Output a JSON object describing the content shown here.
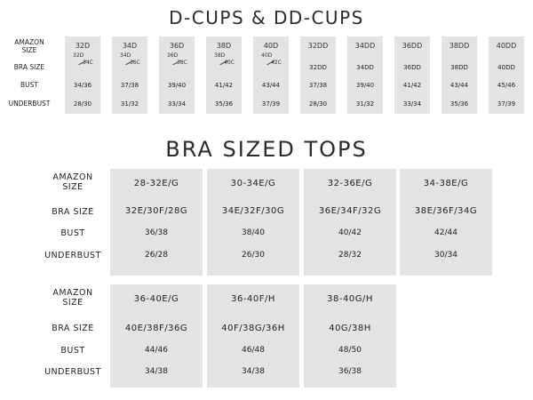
{
  "section1": {
    "title": "D-CUPS & DD-CUPS",
    "row_labels": [
      "AMAZON SIZE",
      "BRA SIZE",
      "BUST",
      "UNDERBUST"
    ],
    "columns": [
      {
        "amazon": "32D",
        "bra_a": "32D",
        "bra_b": "34C",
        "bust": "34/36",
        "underbust": "28/30"
      },
      {
        "amazon": "34D",
        "bra_a": "34D",
        "bra_b": "36C",
        "bust": "37/38",
        "underbust": "31/32"
      },
      {
        "amazon": "36D",
        "bra_a": "36D",
        "bra_b": "38C",
        "bust": "39/40",
        "underbust": "33/34"
      },
      {
        "amazon": "38D",
        "bra_a": "38D",
        "bra_b": "40C",
        "bust": "41/42",
        "underbust": "35/36"
      },
      {
        "amazon": "40D",
        "bra_a": "40D",
        "bra_b": "42C",
        "bust": "43/44",
        "underbust": "37/39"
      },
      {
        "amazon": "32DD",
        "bra": "32DD",
        "bust": "37/38",
        "underbust": "28/30"
      },
      {
        "amazon": "34DD",
        "bra": "34DD",
        "bust": "39/40",
        "underbust": "31/32"
      },
      {
        "amazon": "36DD",
        "bra": "36DD",
        "bust": "41/42",
        "underbust": "33/34"
      },
      {
        "amazon": "38DD",
        "bra": "38DD",
        "bust": "43/44",
        "underbust": "35/36"
      },
      {
        "amazon": "40DD",
        "bra": "40DD",
        "bust": "45/46",
        "underbust": "37/39"
      }
    ]
  },
  "section2": {
    "title": "BRA SIZED TOPS",
    "row_labels": [
      "AMAZON SIZE",
      "BRA SIZE",
      "BUST",
      "UNDERBUST"
    ],
    "columns": [
      {
        "amazon": "28-32E/G",
        "bra": "32E/30F/28G",
        "bust": "36/38",
        "underbust": "26/28"
      },
      {
        "amazon": "30-34E/G",
        "bra": "34E/32F/30G",
        "bust": "38/40",
        "underbust": "26/30"
      },
      {
        "amazon": "32-36E/G",
        "bra": "36E/34F/32G",
        "bust": "40/42",
        "underbust": "28/32"
      },
      {
        "amazon": "34-38E/G",
        "bra": "38E/36F/34G",
        "bust": "42/44",
        "underbust": "30/34"
      }
    ]
  },
  "section3": {
    "row_labels": [
      "AMAZON SIZE",
      "BRA SIZE",
      "BUST",
      "UNDERBUST"
    ],
    "columns": [
      {
        "amazon": "36-40E/G",
        "bra": "40E/38F/36G",
        "bust": "44/46",
        "underbust": "34/38"
      },
      {
        "amazon": "36-40F/H",
        "bra": "40F/38G/36H",
        "bust": "46/48",
        "underbust": "34/38"
      },
      {
        "amazon": "38-40G/H",
        "bra": "40G/38H",
        "bust": "48/50",
        "underbust": "36/38"
      }
    ]
  }
}
